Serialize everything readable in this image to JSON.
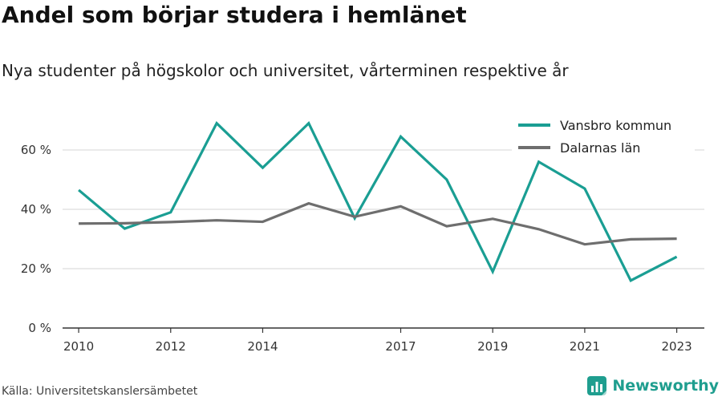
{
  "header": {
    "title": "Andel som börjar studera i hemlänet",
    "subtitle": "Nya studenter på högskolor och universitet, vårterminen respektive år"
  },
  "footer": {
    "source": "Källa: Universitetskanslersämbetet",
    "brand": "Newsworthy"
  },
  "colors": {
    "vansbro": "#1a9e93",
    "dalarna": "#6e6e6e",
    "grid": "#dddddd",
    "axis": "#333333",
    "brand": "#1f9e8f"
  },
  "chart_data": {
    "type": "line",
    "title": "Andel som börjar studera i hemlänet",
    "x": [
      2010,
      2011,
      2012,
      2013,
      2014,
      2015,
      2016,
      2017,
      2018,
      2019,
      2020,
      2021,
      2022,
      2023
    ],
    "xticks": [
      2010,
      2012,
      2014,
      2017,
      2019,
      2021,
      2023
    ],
    "xlim": [
      2009.65,
      2023.6
    ],
    "ylim": [
      0,
      70
    ],
    "yticks": [
      0,
      20,
      40,
      60
    ],
    "ytick_labels": [
      "0 %",
      "20 %",
      "40 %",
      "60 %"
    ],
    "grid": true,
    "legend": "top-right",
    "series": [
      {
        "name": "Vansbro kommun",
        "color_key": "vansbro",
        "values": [
          46.5,
          33.5,
          39,
          69,
          54,
          69,
          37,
          64.5,
          50,
          19,
          56,
          47,
          16,
          24
        ]
      },
      {
        "name": "Dalarnas län",
        "color_key": "dalarna",
        "values": [
          35.2,
          35.3,
          35.7,
          36.3,
          35.8,
          42,
          37.5,
          41,
          34.3,
          36.8,
          33.3,
          28.2,
          29.9,
          30.1
        ]
      }
    ]
  }
}
